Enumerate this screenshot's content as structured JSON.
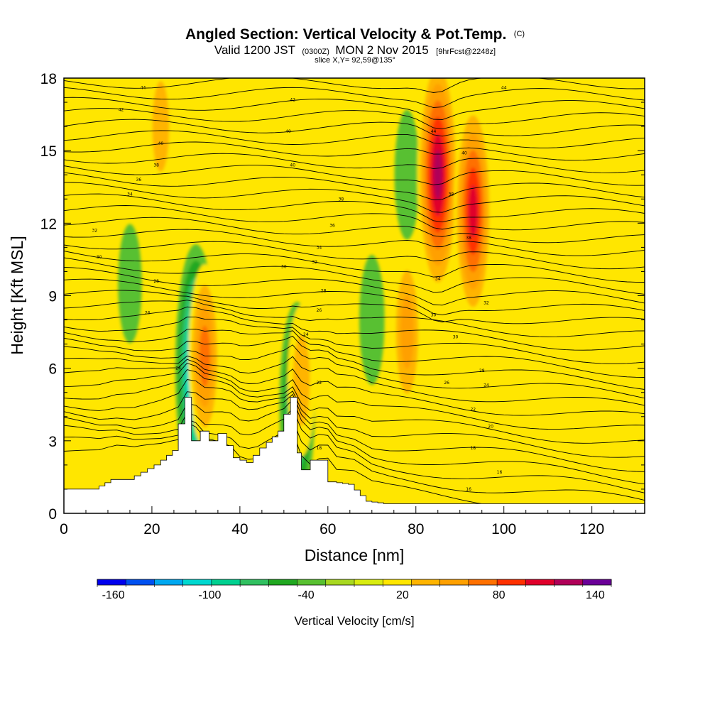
{
  "chart_data": {
    "type": "heatmap",
    "title": "Angled Section: Vertical Velocity & Pot.Temp.",
    "title_units": "(C)",
    "subtitle_prefix": "Valid 1200 JST",
    "subtitle_zulu": "(0300Z)",
    "subtitle_date": "MON 2 Nov 2015",
    "subtitle_forecast": "[9hrFcst@2248z]",
    "slice_text": "slice X,Y= 92,59@135°",
    "xlabel": "Distance [nm]",
    "ylabel": "Height [Kft MSL]",
    "xlim": [
      0,
      132
    ],
    "ylim": [
      0,
      18
    ],
    "x_ticks": [
      0,
      20,
      40,
      60,
      80,
      100,
      120
    ],
    "x_tick_labels": [
      "0",
      "20",
      "40",
      "60",
      "80",
      "100",
      "120"
    ],
    "y_ticks": [
      0,
      3,
      6,
      9,
      12,
      15,
      18
    ],
    "y_tick_labels": [
      "0",
      "3",
      "6",
      "9",
      "12",
      "15",
      "18"
    ],
    "grid": false,
    "colorbar": {
      "title": "Vertical Velocity [cm/s]",
      "placement": "bottom",
      "range": [
        -170,
        150
      ],
      "bin_width": 20,
      "tick_values": [
        -160,
        -100,
        -40,
        20,
        80,
        140
      ],
      "tick_labels": [
        "-160",
        "-100",
        "-40",
        "20",
        "80",
        "140"
      ],
      "colors": [
        "#0000ee",
        "#0050f0",
        "#00a8f0",
        "#00d8d0",
        "#00d090",
        "#30c060",
        "#20a820",
        "#58c030",
        "#a8d820",
        "#d8ec10",
        "#ffe600",
        "#ffb400",
        "#ffa000",
        "#ff7000",
        "#ff3000",
        "#e0002a",
        "#b00058",
        "#6a0098"
      ]
    },
    "background_color": "#ffe600",
    "terrain_profile": [
      [
        0,
        1.0
      ],
      [
        8,
        1.0
      ],
      [
        12,
        1.4
      ],
      [
        16,
        1.4
      ],
      [
        22,
        2.0
      ],
      [
        26,
        2.6
      ],
      [
        29,
        4.8
      ],
      [
        31,
        3.0
      ],
      [
        33,
        3.4
      ],
      [
        35,
        3.0
      ],
      [
        37,
        3.3
      ],
      [
        40,
        2.3
      ],
      [
        43,
        2.1
      ],
      [
        46,
        2.7
      ],
      [
        50,
        3.4
      ],
      [
        53,
        4.8
      ],
      [
        54,
        2.5
      ],
      [
        56,
        1.8
      ],
      [
        58,
        2.2
      ],
      [
        60,
        2.2
      ],
      [
        62,
        1.3
      ],
      [
        66,
        1.2
      ],
      [
        70,
        0.5
      ],
      [
        74,
        0.4
      ],
      [
        132,
        0.4
      ]
    ],
    "updraft_cores": [
      {
        "x": 85,
        "y": 14.0,
        "max_value": 150
      },
      {
        "x": 93,
        "y": 12.5,
        "max_value": 130
      },
      {
        "x": 78,
        "y": 7.5,
        "max_value": 80
      },
      {
        "x": 32,
        "y": 6.5,
        "max_value": 90
      },
      {
        "x": 54,
        "y": 5.5,
        "max_value": 60
      },
      {
        "x": 22,
        "y": 16.0,
        "max_value": 60
      }
    ],
    "downdraft_cores": [
      {
        "x": 30,
        "y": 6.0,
        "min_value": -150
      },
      {
        "x": 53,
        "y": 4.5,
        "min_value": -110
      },
      {
        "x": 70,
        "y": 8.0,
        "min_value": -40
      },
      {
        "x": 78,
        "y": 14.0,
        "min_value": -40
      },
      {
        "x": 15,
        "y": 9.5,
        "min_value": -30
      }
    ],
    "contour_labels": [
      {
        "x": 18,
        "y": 17.6,
        "text": "44"
      },
      {
        "x": 13,
        "y": 16.7,
        "text": "42"
      },
      {
        "x": 22,
        "y": 15.3,
        "text": "40"
      },
      {
        "x": 21,
        "y": 14.4,
        "text": "38"
      },
      {
        "x": 17,
        "y": 13.8,
        "text": "36"
      },
      {
        "x": 15,
        "y": 13.2,
        "text": "34"
      },
      {
        "x": 7,
        "y": 11.7,
        "text": "32"
      },
      {
        "x": 8,
        "y": 10.6,
        "text": "30"
      },
      {
        "x": 21,
        "y": 9.6,
        "text": "28"
      },
      {
        "x": 19,
        "y": 8.3,
        "text": "26"
      },
      {
        "x": 26,
        "y": 6.0,
        "text": "24"
      },
      {
        "x": 52,
        "y": 17.1,
        "text": "42"
      },
      {
        "x": 51,
        "y": 15.8,
        "text": "40"
      },
      {
        "x": 52,
        "y": 14.4,
        "text": "40"
      },
      {
        "x": 63,
        "y": 13.0,
        "text": "38"
      },
      {
        "x": 61,
        "y": 11.9,
        "text": "36"
      },
      {
        "x": 58,
        "y": 11.0,
        "text": "34"
      },
      {
        "x": 57,
        "y": 10.4,
        "text": "32"
      },
      {
        "x": 50,
        "y": 10.2,
        "text": "30"
      },
      {
        "x": 59,
        "y": 9.2,
        "text": "28"
      },
      {
        "x": 58,
        "y": 8.4,
        "text": "26"
      },
      {
        "x": 55,
        "y": 7.4,
        "text": "24"
      },
      {
        "x": 58,
        "y": 5.4,
        "text": "22"
      },
      {
        "x": 52,
        "y": 4.6,
        "text": "20"
      },
      {
        "x": 58,
        "y": 2.7,
        "text": "18"
      },
      {
        "x": 100,
        "y": 17.6,
        "text": "44"
      },
      {
        "x": 84,
        "y": 15.8,
        "text": "44"
      },
      {
        "x": 91,
        "y": 14.9,
        "text": "40"
      },
      {
        "x": 88,
        "y": 13.2,
        "text": "38"
      },
      {
        "x": 92,
        "y": 11.4,
        "text": "38"
      },
      {
        "x": 85,
        "y": 9.7,
        "text": "34"
      },
      {
        "x": 96,
        "y": 8.7,
        "text": "32"
      },
      {
        "x": 84,
        "y": 8.2,
        "text": "30"
      },
      {
        "x": 89,
        "y": 7.3,
        "text": "30"
      },
      {
        "x": 95,
        "y": 5.9,
        "text": "28"
      },
      {
        "x": 87,
        "y": 5.4,
        "text": "26"
      },
      {
        "x": 96,
        "y": 5.3,
        "text": "24"
      },
      {
        "x": 93,
        "y": 4.3,
        "text": "22"
      },
      {
        "x": 97,
        "y": 3.6,
        "text": "20"
      },
      {
        "x": 93,
        "y": 2.7,
        "text": "18"
      },
      {
        "x": 99,
        "y": 1.7,
        "text": "16"
      },
      {
        "x": 92,
        "y": 1.0,
        "text": "16"
      }
    ]
  }
}
